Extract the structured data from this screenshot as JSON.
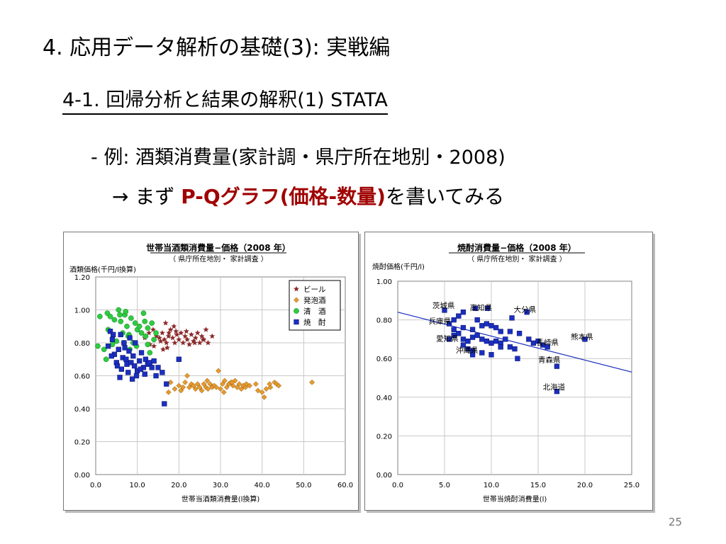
{
  "slide": {
    "title": "4. 応用データ解析の基礎(3): 実戦編",
    "subtitle": "4-1. 回帰分析と結果の解釈(1) STATA",
    "bullet1": "- 例: 酒類消費量(家計調・県庁所在地別・2008)",
    "bullet2_arrow": "→ まず ",
    "bullet2_highlight": "P-Qグラフ(価格-数量)",
    "bullet2_tail": "を書いてみる",
    "page_number": "25",
    "highlight_color": "#a00000"
  },
  "chart_data": [
    {
      "type": "scatter",
      "title": "世帯当酒類消費量−価格（2008 年）",
      "subtitle": "（ 県庁所在地別・ 家計調査 ）",
      "ylabel": "酒類価格(千円/l換算)",
      "xlabel": "世帯当酒類消費量(l換算)",
      "xlim": [
        0,
        60
      ],
      "ylim": [
        0,
        1.2
      ],
      "xticks": [
        "0.0",
        "10.0",
        "20.0",
        "30.0",
        "40.0",
        "50.0",
        "60.0"
      ],
      "yticks": [
        "0.00",
        "0.20",
        "0.40",
        "0.60",
        "0.80",
        "1.00",
        "1.20"
      ],
      "grid": true,
      "legend_position": "top-right",
      "series": [
        {
          "name": "ビール",
          "marker": "star",
          "color": "#8b2a2a",
          "points": [
            [
              16,
              0.86
            ],
            [
              16.5,
              0.82
            ],
            [
              17,
              0.8
            ],
            [
              17.5,
              0.84
            ],
            [
              18,
              0.88
            ],
            [
              18.5,
              0.83
            ],
            [
              19,
              0.8
            ],
            [
              19.5,
              0.85
            ],
            [
              20,
              0.82
            ],
            [
              20.5,
              0.86
            ],
            [
              21,
              0.8
            ],
            [
              21.5,
              0.84
            ],
            [
              22,
              0.82
            ],
            [
              22.5,
              0.79
            ],
            [
              23,
              0.85
            ],
            [
              23.5,
              0.81
            ],
            [
              24,
              0.83
            ],
            [
              24.5,
              0.86
            ],
            [
              25,
              0.8
            ],
            [
              25.5,
              0.84
            ],
            [
              26,
              0.82
            ],
            [
              26.5,
              0.88
            ],
            [
              27,
              0.8
            ],
            [
              28,
              0.84
            ],
            [
              16.2,
              0.76
            ],
            [
              17.2,
              0.77
            ],
            [
              15.6,
              0.81
            ],
            [
              14.6,
              0.84
            ],
            [
              13.8,
              0.88
            ],
            [
              12.8,
              0.86
            ],
            [
              11.8,
              0.83
            ],
            [
              13,
              0.79
            ],
            [
              14,
              0.78
            ],
            [
              16.8,
              0.92
            ],
            [
              18.8,
              0.9
            ],
            [
              21.8,
              0.87
            ],
            [
              23.8,
              0.8
            ],
            [
              25.8,
              0.82
            ],
            [
              19.3,
              0.87
            ],
            [
              15.3,
              0.83
            ],
            [
              17.6,
              0.86
            ]
          ]
        },
        {
          "name": "発泡酒",
          "marker": "diamond",
          "color": "#e69a2e",
          "points": [
            [
              17.5,
              0.5
            ],
            [
              18,
              0.56
            ],
            [
              19,
              0.52
            ],
            [
              20,
              0.54
            ],
            [
              21,
              0.53
            ],
            [
              22,
              0.6
            ],
            [
              22.5,
              0.53
            ],
            [
              23,
              0.55
            ],
            [
              23.5,
              0.54
            ],
            [
              24,
              0.52
            ],
            [
              24.5,
              0.55
            ],
            [
              25,
              0.53
            ],
            [
              25.5,
              0.51
            ],
            [
              26,
              0.55
            ],
            [
              26.5,
              0.53
            ],
            [
              27,
              0.52
            ],
            [
              27.5,
              0.55
            ],
            [
              28,
              0.53
            ],
            [
              28.5,
              0.54
            ],
            [
              29,
              0.53
            ],
            [
              29.5,
              0.63
            ],
            [
              30,
              0.52
            ],
            [
              30.5,
              0.55
            ],
            [
              31,
              0.57
            ],
            [
              31.5,
              0.53
            ],
            [
              32,
              0.55
            ],
            [
              32.5,
              0.56
            ],
            [
              33,
              0.54
            ],
            [
              33.5,
              0.57
            ],
            [
              34,
              0.53
            ],
            [
              34.5,
              0.55
            ],
            [
              35,
              0.52
            ],
            [
              35.5,
              0.54
            ],
            [
              36,
              0.53
            ],
            [
              37,
              0.54
            ],
            [
              38.5,
              0.55
            ],
            [
              39,
              0.51
            ],
            [
              40,
              0.5
            ],
            [
              40.5,
              0.47
            ],
            [
              41,
              0.52
            ],
            [
              42,
              0.53
            ],
            [
              43,
              0.56
            ],
            [
              43.5,
              0.55
            ],
            [
              44,
              0.54
            ],
            [
              52,
              0.56
            ],
            [
              20.5,
              0.51
            ],
            [
              21.5,
              0.56
            ],
            [
              26.8,
              0.57
            ],
            [
              30.8,
              0.5
            ],
            [
              32.8,
              0.56
            ],
            [
              36.2,
              0.55
            ],
            [
              41.8,
              0.55
            ]
          ]
        },
        {
          "name": "清　酒",
          "marker": "circle",
          "color": "#2ecc40",
          "points": [
            [
              0.5,
              0.78
            ],
            [
              1,
              0.96
            ],
            [
              2,
              0.76
            ],
            [
              2.8,
              0.98
            ],
            [
              3.5,
              0.96
            ],
            [
              4,
              0.79
            ],
            [
              4.5,
              0.94
            ],
            [
              5,
              0.81
            ],
            [
              5.5,
              1.0
            ],
            [
              6,
              0.93
            ],
            [
              6.5,
              0.86
            ],
            [
              7,
              0.97
            ],
            [
              7.5,
              0.9
            ],
            [
              8,
              0.85
            ],
            [
              8.5,
              0.95
            ],
            [
              9,
              0.8
            ],
            [
              9.5,
              0.92
            ],
            [
              10,
              0.88
            ],
            [
              10.5,
              0.9
            ],
            [
              11,
              0.86
            ],
            [
              11.5,
              0.98
            ],
            [
              12,
              0.84
            ],
            [
              12.5,
              0.89
            ],
            [
              13,
              0.74
            ],
            [
              13.5,
              0.92
            ],
            [
              14,
              0.82
            ],
            [
              14.5,
              0.86
            ],
            [
              6.8,
              0.8
            ],
            [
              8.2,
              0.76
            ],
            [
              5.8,
              0.97
            ],
            [
              7.8,
              0.84
            ],
            [
              3,
              0.88
            ],
            [
              9.8,
              0.78
            ],
            [
              11.8,
              0.93
            ],
            [
              12.5,
              0.79
            ],
            [
              7.2,
              0.99
            ],
            [
              2.5,
              0.7
            ]
          ]
        },
        {
          "name": "焼　酎",
          "marker": "square",
          "color": "#1a2fc0",
          "points": [
            [
              3,
              0.78
            ],
            [
              3.5,
              0.87
            ],
            [
              4,
              0.82
            ],
            [
              4.5,
              0.73
            ],
            [
              5,
              0.68
            ],
            [
              5.5,
              0.76
            ],
            [
              6,
              0.85
            ],
            [
              6.2,
              0.64
            ],
            [
              6.5,
              0.71
            ],
            [
              7,
              0.77
            ],
            [
              7.5,
              0.67
            ],
            [
              8,
              0.75
            ],
            [
              8.5,
              0.68
            ],
            [
              9,
              0.72
            ],
            [
              9.5,
              0.8
            ],
            [
              10,
              0.63
            ],
            [
              10.5,
              0.69
            ],
            [
              11,
              0.74
            ],
            [
              11.5,
              0.65
            ],
            [
              12,
              0.7
            ],
            [
              12.5,
              0.67
            ],
            [
              13,
              0.68
            ],
            [
              13.5,
              0.65
            ],
            [
              14,
              0.69
            ],
            [
              14.5,
              0.6
            ],
            [
              15,
              0.65
            ],
            [
              16,
              0.62
            ],
            [
              17,
              0.55
            ],
            [
              16.5,
              0.43
            ],
            [
              20,
              0.7
            ],
            [
              5.8,
              0.59
            ],
            [
              7.8,
              0.62
            ],
            [
              8.8,
              0.58
            ],
            [
              9.8,
              0.6
            ],
            [
              10.8,
              0.64
            ],
            [
              11.8,
              0.61
            ],
            [
              4.2,
              0.85
            ],
            [
              6.8,
              0.8
            ],
            [
              8.2,
              0.83
            ],
            [
              3.8,
              0.72
            ],
            [
              5.2,
              0.66
            ],
            [
              7.3,
              0.7
            ],
            [
              9.3,
              0.66
            ]
          ]
        }
      ]
    },
    {
      "type": "scatter",
      "title": "焼酎消費量−価格（2008 年）",
      "subtitle": "（ 県庁所在地別・ 家計調査 ）",
      "ylabel": "焼酎価格(千円/l)",
      "xlabel": "世帯当焼酎消費量(l)",
      "xlim": [
        0,
        25
      ],
      "ylim": [
        0,
        1.0
      ],
      "xticks": [
        "0.0",
        "5.0",
        "10.0",
        "15.0",
        "20.0",
        "25.0"
      ],
      "yticks": [
        "0.00",
        "0.20",
        "0.40",
        "0.60",
        "0.80",
        "1.00"
      ],
      "grid": true,
      "trendline": {
        "x": [
          0,
          25
        ],
        "y": [
          0.84,
          0.53
        ],
        "color": "#1a2fc0"
      },
      "points": [
        [
          5,
          0.85
        ],
        [
          6,
          0.8
        ],
        [
          6.5,
          0.82
        ],
        [
          7,
          0.84
        ],
        [
          5.5,
          0.78
        ],
        [
          6,
          0.75
        ],
        [
          7,
          0.76
        ],
        [
          8,
          0.75
        ],
        [
          8.5,
          0.8
        ],
        [
          9,
          0.77
        ],
        [
          9.5,
          0.78
        ],
        [
          10,
          0.77
        ],
        [
          10.5,
          0.76
        ],
        [
          11,
          0.74
        ],
        [
          12,
          0.74
        ],
        [
          13,
          0.73
        ],
        [
          12.2,
          0.81
        ],
        [
          8.3,
          0.86
        ],
        [
          9.6,
          0.86
        ],
        [
          13.8,
          0.84
        ],
        [
          5.5,
          0.7
        ],
        [
          6,
          0.72
        ],
        [
          6.5,
          0.73
        ],
        [
          7,
          0.7
        ],
        [
          7.5,
          0.69
        ],
        [
          8,
          0.71
        ],
        [
          8.5,
          0.72
        ],
        [
          9,
          0.7
        ],
        [
          9.5,
          0.69
        ],
        [
          10,
          0.68
        ],
        [
          10.5,
          0.69
        ],
        [
          11,
          0.68
        ],
        [
          11.5,
          0.7
        ],
        [
          12,
          0.66
        ],
        [
          12.5,
          0.65
        ],
        [
          14,
          0.7
        ],
        [
          14.5,
          0.68
        ],
        [
          15,
          0.69
        ],
        [
          15.5,
          0.67
        ],
        [
          16,
          0.66
        ],
        [
          7,
          0.67
        ],
        [
          7.5,
          0.65
        ],
        [
          8,
          0.64
        ],
        [
          9,
          0.63
        ],
        [
          10,
          0.62
        ],
        [
          11,
          0.66
        ],
        [
          12.8,
          0.6
        ],
        [
          8,
          0.62
        ],
        [
          17,
          0.56
        ],
        [
          20,
          0.7
        ],
        [
          17,
          0.43
        ]
      ],
      "point_color": "#1a2fc0",
      "annotations": [
        {
          "text": "茨城県",
          "x": 3.7,
          "y": 0.86
        },
        {
          "text": "高知県",
          "x": 7.7,
          "y": 0.85
        },
        {
          "text": "大分県",
          "x": 12.4,
          "y": 0.84
        },
        {
          "text": "兵庫県",
          "x": 3.3,
          "y": 0.78
        },
        {
          "text": "愛知県",
          "x": 4.1,
          "y": 0.69
        },
        {
          "text": "沖縄県",
          "x": 6.2,
          "y": 0.63
        },
        {
          "text": "長崎県",
          "x": 14.8,
          "y": 0.67
        },
        {
          "text": "熊本県",
          "x": 18.5,
          "y": 0.7
        },
        {
          "text": "青森県",
          "x": 15,
          "y": 0.58
        },
        {
          "text": "北海道",
          "x": 15.5,
          "y": 0.44
        }
      ]
    }
  ]
}
